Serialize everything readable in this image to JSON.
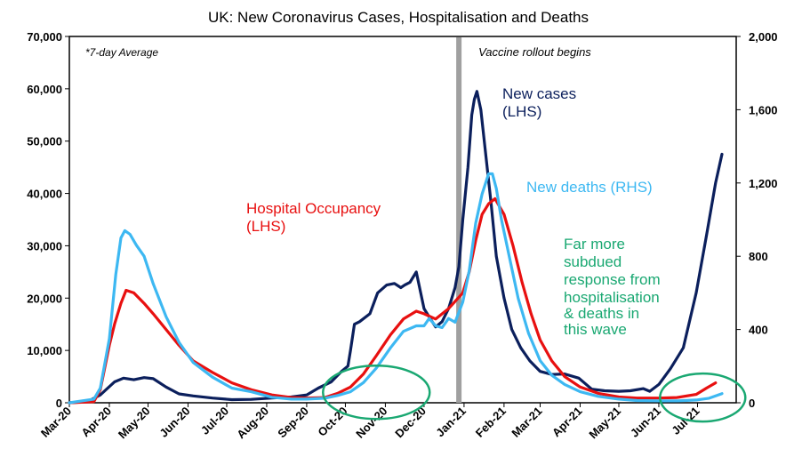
{
  "chart_data": {
    "type": "line",
    "title": "UK: New Coronavirus Cases, Hospitalisation and Deaths",
    "x_ticks": [
      "Mar-20",
      "Apr-20",
      "May-20",
      "Jun-20",
      "Jul-20",
      "Aug-20",
      "Sep-20",
      "Oct-20",
      "Nov-20",
      "Dec-20",
      "Jan-21",
      "Feb-21",
      "Mar-21",
      "Apr-21",
      "May-21",
      "Jun-21",
      "Jul-21"
    ],
    "x_range": [
      "2020-03-01",
      "2021-07-31"
    ],
    "y_left": {
      "range": [
        0,
        70000
      ],
      "ticks": [
        "0",
        "10,000",
        "20,000",
        "30,000",
        "40,000",
        "50,000",
        "60,000",
        "70,000"
      ],
      "tick_values": [
        0,
        10000,
        20000,
        30000,
        40000,
        50000,
        60000,
        70000
      ]
    },
    "y_right": {
      "range": [
        0,
        2000
      ],
      "ticks": [
        "0",
        "400",
        "800",
        "1,200",
        "1,600",
        "2,000"
      ],
      "tick_values": [
        0,
        400,
        800,
        1200,
        1600,
        2000
      ]
    },
    "note": "*7-day Average",
    "vline": {
      "date": "2020-12-28",
      "label": "Vaccine rollout begins",
      "color": "#a0a0a0"
    },
    "series": [
      {
        "name": "New cases (LHS)",
        "axis": "left",
        "color": "#0b1f5c",
        "x": [
          "2020-03-01",
          "2020-03-15",
          "2020-03-25",
          "2020-04-05",
          "2020-04-12",
          "2020-04-20",
          "2020-04-28",
          "2020-05-05",
          "2020-05-15",
          "2020-05-25",
          "2020-06-05",
          "2020-06-20",
          "2020-07-05",
          "2020-07-20",
          "2020-08-05",
          "2020-08-20",
          "2020-09-01",
          "2020-09-10",
          "2020-09-20",
          "2020-09-28",
          "2020-10-03",
          "2020-10-05",
          "2020-10-08",
          "2020-10-12",
          "2020-10-20",
          "2020-10-26",
          "2020-11-02",
          "2020-11-08",
          "2020-11-13",
          "2020-11-16",
          "2020-11-20",
          "2020-11-25",
          "2020-12-01",
          "2020-12-06",
          "2020-12-10",
          "2020-12-15",
          "2020-12-20",
          "2020-12-25",
          "2020-12-28",
          "2020-12-31",
          "2021-01-04",
          "2021-01-07",
          "2021-01-09",
          "2021-01-11",
          "2021-01-14",
          "2021-01-18",
          "2021-01-22",
          "2021-01-26",
          "2021-02-01",
          "2021-02-07",
          "2021-02-14",
          "2021-02-21",
          "2021-03-01",
          "2021-03-10",
          "2021-03-20",
          "2021-03-31",
          "2021-04-10",
          "2021-04-20",
          "2021-05-01",
          "2021-05-10",
          "2021-05-20",
          "2021-05-25",
          "2021-06-01",
          "2021-06-10",
          "2021-06-20",
          "2021-06-30",
          "2021-07-08",
          "2021-07-15",
          "2021-07-20"
        ],
        "values": [
          0,
          200,
          1500,
          4000,
          4700,
          4400,
          4800,
          4600,
          3000,
          1700,
          1300,
          900,
          600,
          650,
          900,
          1100,
          1500,
          2800,
          4000,
          6000,
          7000,
          10000,
          15000,
          15500,
          17000,
          21000,
          22500,
          22800,
          22000,
          22500,
          23000,
          25000,
          18000,
          16000,
          14500,
          15500,
          18000,
          22000,
          26000,
          35000,
          45000,
          55000,
          58000,
          59500,
          56000,
          47000,
          38000,
          28000,
          20000,
          14000,
          10500,
          8000,
          6000,
          5400,
          5500,
          4700,
          2600,
          2300,
          2200,
          2300,
          2700,
          2200,
          3500,
          6500,
          10500,
          21000,
          32000,
          42000,
          47500
        ]
      },
      {
        "name": "Hospital Occupancy (LHS)",
        "axis": "left",
        "color": "#e81010",
        "x": [
          "2020-03-01",
          "2020-03-20",
          "2020-03-25",
          "2020-04-01",
          "2020-04-05",
          "2020-04-10",
          "2020-04-14",
          "2020-04-20",
          "2020-04-28",
          "2020-05-05",
          "2020-05-15",
          "2020-05-25",
          "2020-06-05",
          "2020-06-20",
          "2020-07-05",
          "2020-07-20",
          "2020-08-05",
          "2020-08-20",
          "2020-09-01",
          "2020-09-15",
          "2020-09-25",
          "2020-10-05",
          "2020-10-15",
          "2020-10-25",
          "2020-11-05",
          "2020-11-15",
          "2020-11-25",
          "2020-12-01",
          "2020-12-10",
          "2020-12-20",
          "2020-12-31",
          "2021-01-05",
          "2021-01-10",
          "2021-01-15",
          "2021-01-20",
          "2021-01-25",
          "2021-02-01",
          "2021-02-08",
          "2021-02-15",
          "2021-02-22",
          "2021-03-01",
          "2021-03-10",
          "2021-03-20",
          "2021-04-01",
          "2021-04-15",
          "2021-05-01",
          "2021-05-15",
          "2021-06-01",
          "2021-06-15",
          "2021-06-30",
          "2021-07-08",
          "2021-07-15"
        ],
        "values": [
          0,
          200,
          2500,
          11000,
          15000,
          19000,
          21500,
          21000,
          19000,
          17000,
          14000,
          11000,
          8000,
          5800,
          3800,
          2500,
          1500,
          1000,
          900,
          1000,
          1800,
          3000,
          5500,
          9000,
          13000,
          16000,
          17500,
          17000,
          16000,
          18000,
          21000,
          25000,
          31000,
          36000,
          38000,
          39000,
          36000,
          30000,
          23000,
          17000,
          12000,
          8000,
          5000,
          3000,
          1800,
          1100,
          900,
          900,
          1000,
          1600,
          2800,
          3800
        ]
      },
      {
        "name": "New deaths (RHS)",
        "axis": "right",
        "color": "#3db8f2",
        "x": [
          "2020-03-01",
          "2020-03-20",
          "2020-03-25",
          "2020-04-01",
          "2020-04-06",
          "2020-04-10",
          "2020-04-13",
          "2020-04-17",
          "2020-04-22",
          "2020-04-28",
          "2020-05-05",
          "2020-05-15",
          "2020-05-25",
          "2020-06-05",
          "2020-06-20",
          "2020-07-05",
          "2020-07-20",
          "2020-08-05",
          "2020-08-20",
          "2020-09-01",
          "2020-09-15",
          "2020-09-25",
          "2020-10-05",
          "2020-10-15",
          "2020-10-25",
          "2020-11-05",
          "2020-11-15",
          "2020-11-25",
          "2020-12-01",
          "2020-12-05",
          "2020-12-10",
          "2020-12-15",
          "2020-12-20",
          "2020-12-25",
          "2020-12-31",
          "2021-01-05",
          "2021-01-10",
          "2021-01-15",
          "2021-01-20",
          "2021-01-23",
          "2021-01-26",
          "2021-01-30",
          "2021-02-05",
          "2021-02-12",
          "2021-02-20",
          "2021-03-01",
          "2021-03-10",
          "2021-03-20",
          "2021-04-01",
          "2021-04-15",
          "2021-05-01",
          "2021-05-15",
          "2021-06-01",
          "2021-06-15",
          "2021-06-30",
          "2021-07-10",
          "2021-07-20"
        ],
        "values": [
          0,
          20,
          80,
          350,
          700,
          900,
          940,
          920,
          860,
          800,
          650,
          470,
          330,
          220,
          140,
          80,
          60,
          30,
          20,
          20,
          25,
          40,
          60,
          110,
          190,
          300,
          390,
          420,
          420,
          460,
          420,
          410,
          460,
          440,
          550,
          720,
          980,
          1140,
          1250,
          1250,
          1170,
          1000,
          800,
          570,
          380,
          230,
          150,
          100,
          60,
          35,
          20,
          12,
          10,
          10,
          15,
          25,
          50
        ]
      }
    ],
    "annotations": [
      {
        "text": "New cases",
        "color": "#0b1f5c"
      },
      {
        "text": "(LHS)",
        "color": "#0b1f5c"
      },
      {
        "text": "New deaths (RHS)",
        "color": "#3db8f2"
      },
      {
        "text": "Hospital Occupancy",
        "color": "#e81010"
      },
      {
        "text": "(LHS)",
        "color": "#e81010"
      },
      {
        "text": "Far more",
        "color": "#1aa872"
      },
      {
        "text": "subdued",
        "color": "#1aa872"
      },
      {
        "text": "response from",
        "color": "#1aa872"
      },
      {
        "text": "hospitalisation",
        "color": "#1aa872"
      },
      {
        "text": "& deaths in",
        "color": "#1aa872"
      },
      {
        "text": "this wave",
        "color": "#1aa872"
      }
    ],
    "highlight_color": "#1aa872",
    "highlights": [
      {
        "date": "2020-10-25",
        "value": 2000
      },
      {
        "date": "2021-07-05",
        "value": 1000
      }
    ]
  }
}
